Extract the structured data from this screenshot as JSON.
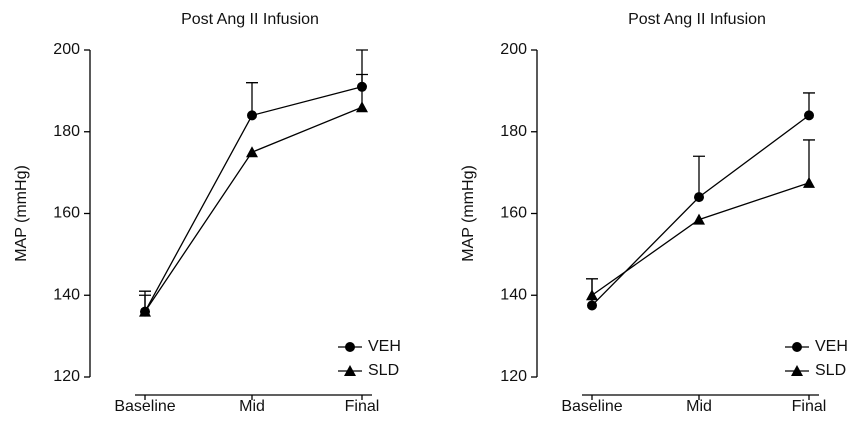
{
  "chart_data": [
    {
      "type": "line",
      "title": "Post Ang II Infusion",
      "y_label": "MAP (mmHg)",
      "categories": [
        "Baseline",
        "Mid",
        "Final"
      ],
      "ylim": [
        120,
        200
      ],
      "yticks": [
        120,
        140,
        160,
        180,
        200
      ],
      "legend": "lower right",
      "series": [
        {
          "name": "VEH",
          "color": "#000000",
          "marker": "circle",
          "values": [
            136,
            184,
            191
          ],
          "errors": [
            5,
            8,
            9
          ]
        },
        {
          "name": "SLD",
          "color": "#000000",
          "marker": "triangle",
          "values": [
            136,
            175,
            186
          ],
          "errors": [
            4,
            null,
            8
          ]
        }
      ]
    },
    {
      "type": "line",
      "title": "Post Ang II Infusion",
      "y_label": "MAP (mmHg)",
      "categories": [
        "Baseline",
        "Mid",
        "Final"
      ],
      "ylim": [
        120,
        200
      ],
      "yticks": [
        120,
        140,
        160,
        180,
        200
      ],
      "legend": "lower right",
      "series": [
        {
          "name": "VEH",
          "color": "#000000",
          "marker": "circle",
          "values": [
            137.5,
            164,
            184
          ],
          "errors": [
            6.5,
            10,
            5.5
          ]
        },
        {
          "name": "SLD",
          "color": "#000000",
          "marker": "triangle",
          "values": [
            140,
            158.5,
            167.5
          ],
          "errors": [
            4,
            null,
            10.5
          ]
        }
      ]
    }
  ]
}
